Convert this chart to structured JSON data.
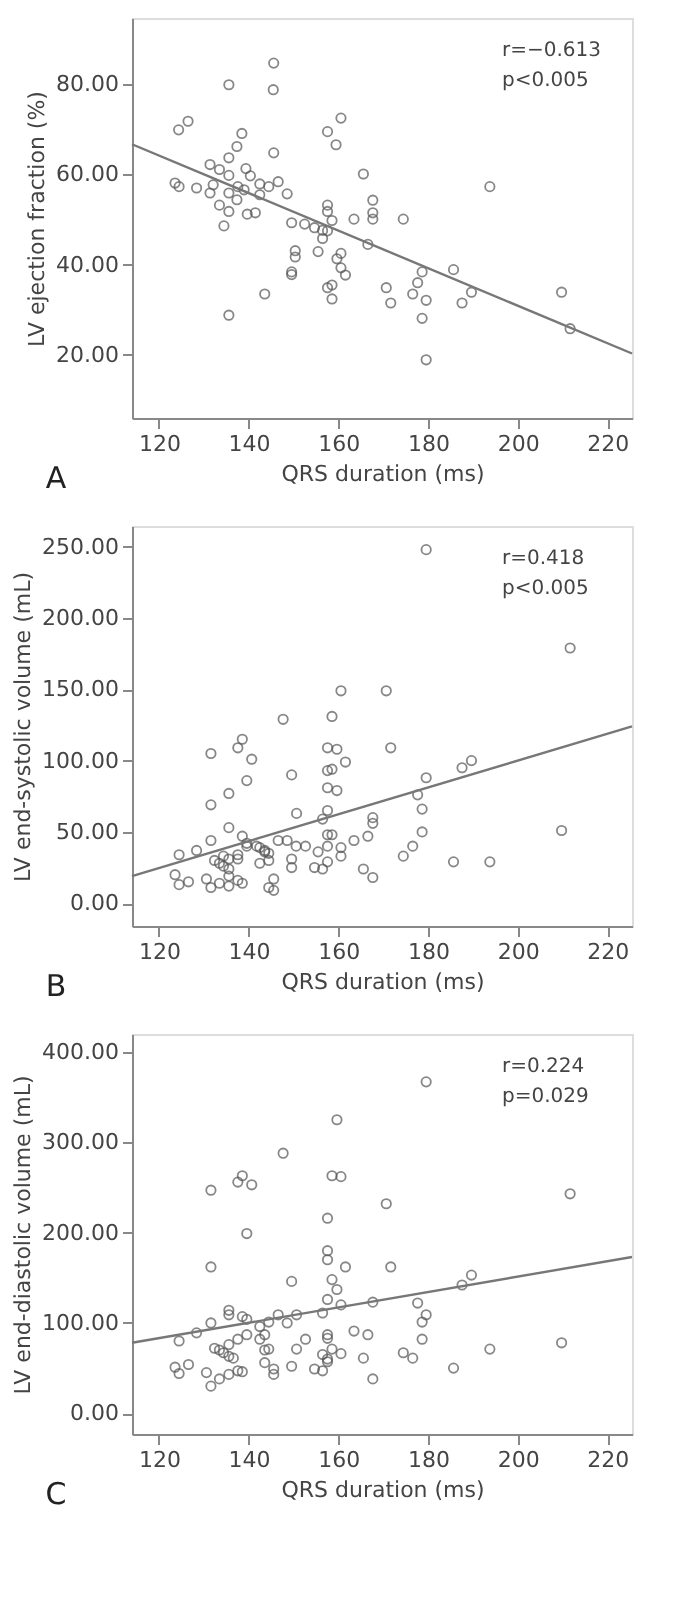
{
  "chart_data": [
    {
      "type": "scatter",
      "xlabel": "QRS duration (ms)",
      "ylabel": "LV ejection fraction (%)",
      "xlim": [
        114,
        225.5
      ],
      "ylim": [
        6,
        94.7
      ],
      "xticks": [
        120,
        140,
        160,
        180,
        200,
        220
      ],
      "yticks": [
        {
          "value": 20,
          "label": "20.00"
        },
        {
          "value": 40,
          "label": "40.00"
        },
        {
          "value": 60,
          "label": "60.00"
        },
        {
          "value": 80,
          "label": "80.00"
        }
      ],
      "grid": false,
      "marker": "circle",
      "annotations": [
        "r=−0.613",
        "p<0.005",
        "A"
      ],
      "series": [
        {
          "color": "#555555",
          "x": [
            145.6,
            135.6,
            145.5,
            126.5,
            124.4,
            160.6,
            157.6,
            159.5,
            138.5,
            137.4,
            145.6,
            135.6,
            131.4,
            133.5,
            139.4,
            135.6,
            140.4,
            165.6,
            123.6,
            124.5,
            128.4,
            132.1,
            131.4,
            137.6,
            139.0,
            142.5,
            144.5,
            146.6,
            148.6,
            142.5,
            135.6,
            137.4,
            133.5,
            135.6,
            139.7,
            141.5,
            134.5,
            149.6,
            152.5,
            154.7,
            157.6,
            157.6,
            158.6,
            156.5,
            157.6,
            156.5,
            163.5,
            167.7,
            167.7,
            167.7,
            174.5,
            166.6,
            193.8,
            150.4,
            150.4,
            155.5,
            160.6,
            159.7,
            160.6,
            161.6,
            149.6,
            149.6,
            157.6,
            158.6,
            158.6,
            143.6,
            135.6,
            170.7,
            171.7,
            176.6,
            177.7,
            178.7,
            185.7,
            179.6,
            178.7,
            187.6,
            189.7,
            209.8,
            211.7,
            179.6
          ],
          "values": [
            84.7,
            79.9,
            78.8,
            71.8,
            69.9,
            72.5,
            69.5,
            66.6,
            69.1,
            66.2,
            64.8,
            63.7,
            62.2,
            61.1,
            61.3,
            59.8,
            59.7,
            60.1,
            58.1,
            57.3,
            57.0,
            57.7,
            55.9,
            57.3,
            56.6,
            57.9,
            57.3,
            58.4,
            55.7,
            55.5,
            55.9,
            54.4,
            53.2,
            51.8,
            51.2,
            51.5,
            48.6,
            49.3,
            49.0,
            48.2,
            53.2,
            51.8,
            49.8,
            47.6,
            47.5,
            45.8,
            50.1,
            54.3,
            51.5,
            50.1,
            50.1,
            44.5,
            57.3,
            43.1,
            41.7,
            42.9,
            42.5,
            41.3,
            39.3,
            37.7,
            38.4,
            37.8,
            34.9,
            35.5,
            32.4,
            33.5,
            28.8,
            34.9,
            31.5,
            33.5,
            36.0,
            38.4,
            38.9,
            32.1,
            28.1,
            31.5,
            33.9,
            33.9,
            25.8,
            18.9
          ]
        },
        {
          "type": "line",
          "marker": "none",
          "color": "#777777",
          "x": [
            114,
            225.5
          ],
          "values": [
            66.7,
            20.3
          ]
        }
      ]
    },
    {
      "type": "scatter",
      "xlabel": "QRS duration (ms)",
      "ylabel": "LV end-systolic volume (mL)",
      "xlim": [
        114,
        225.5
      ],
      "ylim": [
        -16,
        264.6
      ],
      "xticks": [
        120,
        140,
        160,
        180,
        200,
        220
      ],
      "yticks": [
        {
          "value": 0,
          "label": "0.00"
        },
        {
          "value": 50,
          "label": "50.00"
        },
        {
          "value": 100,
          "label": "100.00"
        },
        {
          "value": 150,
          "label": "150.00"
        },
        {
          "value": 200,
          "label": "200.00"
        },
        {
          "value": 250,
          "label": "250.00"
        }
      ],
      "grid": false,
      "marker": "circle",
      "annotations": [
        "r=0.418",
        "p<0.005",
        "B"
      ],
      "series": [
        {
          "color": "#555555",
          "x": [
            179.6,
            211.7,
            160.6,
            170.7,
            147.7,
            158.6,
            138.6,
            137.6,
            157.6,
            159.7,
            171.7,
            131.6,
            140.7,
            161.6,
            189.7,
            187.6,
            158.6,
            157.6,
            149.6,
            179.6,
            139.6,
            157.6,
            159.7,
            135.6,
            177.7,
            131.6,
            178.7,
            157.6,
            150.7,
            167.7,
            167.7,
            156.5,
            135.6,
            209.8,
            178.7,
            157.6,
            158.6,
            166.6,
            138.6,
            146.6,
            148.6,
            163.5,
            131.6,
            139.6,
            139.6,
            141.8,
            150.6,
            152.7,
            157.6,
            160.6,
            142.5,
            143.6,
            143.6,
            144.5,
            155.5,
            160.6,
            124.5,
            128.4,
            132.4,
            134.4,
            135.6,
            137.6,
            137.6,
            133.5,
            134.4,
            135.6,
            135.6,
            144.5,
            149.6,
            142.5,
            149.6,
            154.7,
            156.5,
            157.6,
            165.6,
            174.5,
            176.6,
            185.7,
            193.8,
            167.7,
            123.6,
            124.5,
            126.6,
            130.6,
            131.6,
            133.5,
            135.6,
            137.6,
            138.6,
            144.5,
            145.6,
            145.6
          ],
          "values": [
            248,
            179,
            149,
            149,
            129,
            131,
            115,
            109,
            109,
            108,
            109,
            105,
            101,
            99,
            100,
            95,
            94,
            93,
            90,
            88,
            86,
            81,
            79,
            77,
            76,
            69,
            66,
            65,
            63,
            60,
            56,
            59,
            53,
            51,
            50,
            48,
            48,
            47,
            47,
            44,
            44,
            44,
            44,
            42,
            40,
            40,
            40,
            40,
            40,
            39,
            39,
            37,
            36,
            35,
            36,
            33,
            34,
            37,
            30,
            33,
            31,
            34,
            31,
            28,
            26,
            24,
            19,
            30,
            31,
            28,
            25,
            25,
            24,
            29,
            24,
            33,
            40,
            29,
            29,
            18,
            20,
            13,
            15,
            17,
            11,
            14,
            12,
            16,
            14,
            11,
            17,
            9
          ]
        },
        {
          "type": "line",
          "marker": "none",
          "color": "#777777",
          "x": [
            114,
            225.5
          ],
          "values": [
            19,
            124
          ]
        }
      ]
    },
    {
      "type": "scatter",
      "xlabel": "QRS duration (ms)",
      "ylabel": "LV end-diastolic volume (mL)",
      "xlim": [
        114,
        225.5
      ],
      "ylim": [
        -23,
        420
      ],
      "xticks": [
        120,
        140,
        160,
        180,
        200,
        220
      ],
      "yticks": [
        {
          "value": 0,
          "label": "0.00"
        },
        {
          "value": 100,
          "label": "100.00"
        },
        {
          "value": 200,
          "label": "200.00"
        },
        {
          "value": 300,
          "label": "300.00"
        },
        {
          "value": 400,
          "label": "400.00"
        }
      ],
      "grid": false,
      "marker": "circle",
      "annotations": [
        "r=0.224",
        "p=0.029",
        "C"
      ],
      "series": [
        {
          "color": "#555555",
          "x": [
            179.6,
            159.7,
            147.7,
            131.6,
            138.6,
            137.6,
            140.7,
            158.6,
            160.6,
            211.7,
            170.7,
            157.6,
            139.6,
            157.6,
            157.6,
            131.6,
            161.6,
            171.7,
            189.7,
            158.6,
            149.6,
            187.6,
            159.7,
            167.7,
            177.7,
            157.6,
            160.6,
            179.6,
            178.7,
            178.7,
            156.5,
            135.6,
            135.6,
            146.6,
            150.7,
            138.6,
            139.6,
            131.6,
            128.4,
            139.6,
            142.5,
            144.5,
            148.6,
            143.6,
            142.5,
            152.7,
            157.6,
            157.6,
            163.5,
            166.6,
            124.5,
            135.6,
            137.6,
            132.4,
            133.5,
            134.4,
            135.6,
            136.6,
            144.5,
            150.7,
            158.6,
            143.6,
            160.6,
            156.5,
            157.6,
            157.6,
            165.6,
            174.5,
            176.6,
            193.8,
            209.8,
            123.6,
            124.5,
            126.6,
            130.6,
            131.6,
            133.5,
            135.6,
            137.6,
            138.6,
            143.6,
            145.6,
            145.6,
            149.6,
            154.7,
            156.5,
            167.7,
            185.7
          ],
          "values": [
            367,
            325,
            288,
            247,
            263,
            256,
            253,
            263,
            262,
            243,
            232,
            216,
            199,
            180,
            170,
            162,
            162,
            162,
            153,
            148,
            146,
            142,
            137,
            123,
            122,
            126,
            120,
            109,
            101,
            82,
            111,
            114,
            109,
            109,
            109,
            107,
            104,
            100,
            89,
            87,
            96,
            101,
            100,
            87,
            82,
            82,
            87,
            83,
            91,
            87,
            80,
            76,
            82,
            72,
            70,
            67,
            63,
            61,
            71,
            71,
            71,
            70,
            66,
            65,
            60,
            57,
            61,
            67,
            61,
            71,
            78,
            51,
            44,
            54,
            45,
            30,
            38,
            43,
            47,
            46,
            56,
            49,
            43,
            52,
            49,
            47,
            38,
            50
          ]
        },
        {
          "type": "line",
          "marker": "none",
          "color": "#777777",
          "x": [
            114,
            225.5
          ],
          "values": [
            78,
            173
          ]
        }
      ]
    }
  ]
}
